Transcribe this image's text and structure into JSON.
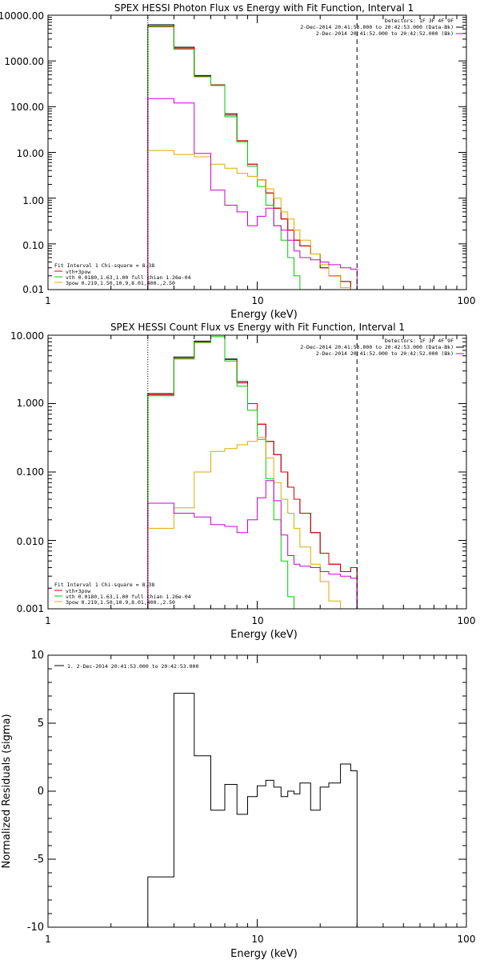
{
  "chart_data": [
    {
      "type": "line",
      "title": "SPEX HESSI Photon Flux vs Energy with Fit Function, Interval 1",
      "xlabel": "Energy (keV)",
      "ylabel": "",
      "xscale": "log",
      "yscale": "log",
      "xlim": [
        1,
        100
      ],
      "ylim": [
        0.01,
        10000
      ],
      "xticks": [
        "1",
        "10",
        "100"
      ],
      "yticks": [
        "0.01",
        "0.10",
        "1.00",
        "10.00",
        "100.00",
        "1000.00",
        "10000.00"
      ],
      "vlines": {
        "dotted": 3,
        "dashed": 30
      },
      "header": [
        {
          "text": "Detectors: 1F 3F 4F 9F",
          "color": null
        },
        {
          "text": "2-Dec-2014 20:41:53.000 to 20:42:53.000 (Data-Bk)",
          "color": "#000000"
        },
        {
          "text": "2-Dec-2014 20:41:52.000 to 20:42:52.000 (Bk)",
          "color": "#cc00cc"
        }
      ],
      "legend_title": "Fit Interval 1   Chi-square = 8.38",
      "legend_items": [
        {
          "text": "vth+3pow",
          "color": "#dd0000"
        },
        {
          "text": "vth 0.0180,1.63,1.00  full chian 1.26e-04",
          "color": "#00cc00"
        },
        {
          "text": "3pow 0.219,1.50,10.9,8.01,400.,2.50",
          "color": "#ddaa00"
        }
      ],
      "x_edges": [
        3,
        4,
        5,
        6,
        7,
        8,
        9,
        10,
        11,
        12,
        13,
        14,
        15,
        16,
        18,
        20,
        22,
        25,
        28,
        30
      ],
      "series": [
        {
          "color": "#000000",
          "values": [
            6200,
            2000,
            480,
            300,
            70,
            18,
            5.5,
            2.5,
            1.3,
            0.6,
            0.35,
            0.2,
            0.12,
            0.09,
            0.06,
            0.03,
            0.02,
            0.015,
            0.01
          ]
        },
        {
          "color": "#dd0000",
          "values": [
            5800,
            1900,
            460,
            300,
            65,
            18,
            5.5,
            2.5,
            1.3,
            0.6,
            0.35,
            0.2,
            0.12,
            0.09,
            0.06,
            0.03,
            0.02,
            0.015,
            0.01
          ]
        },
        {
          "color": "#00cc00",
          "values": [
            5500,
            1800,
            450,
            290,
            60,
            17,
            5,
            1.8,
            0.7,
            0.25,
            0.12,
            0.05,
            0.02,
            0.008
          ]
        },
        {
          "color": "#ddaa00",
          "values": [
            11,
            9,
            8,
            5.5,
            4.5,
            3.5,
            3,
            2.5,
            1.6,
            1.0,
            0.5,
            0.35,
            0.2,
            0.12,
            0.06,
            0.035,
            0.02,
            0.011
          ]
        },
        {
          "color": "#cc00cc",
          "values": [
            150,
            120,
            9.5,
            1.5,
            0.7,
            0.5,
            0.25,
            0.4,
            0.6,
            0.25,
            0.2,
            0.12,
            0.07,
            0.05,
            0.045,
            0.04,
            0.035,
            0.03,
            0.028
          ]
        }
      ]
    },
    {
      "type": "line",
      "title": "SPEX HESSI Count Flux vs Energy with Fit Function, Interval 1",
      "xlabel": "Energy (keV)",
      "ylabel": "",
      "xscale": "log",
      "yscale": "log",
      "xlim": [
        1,
        100
      ],
      "ylim": [
        0.001,
        10
      ],
      "xticks": [
        "1",
        "10",
        "100"
      ],
      "yticks": [
        "0.001",
        "0.010",
        "0.100",
        "1.000",
        "10.000"
      ],
      "vlines": {
        "dotted": 3,
        "dashed": 30
      },
      "header": [
        {
          "text": "Detectors: 1F 3F 4F 9F",
          "color": null
        },
        {
          "text": "2-Dec-2014 20:41:53.000 to 20:42:53.000 (Data-Bk)",
          "color": "#000000"
        },
        {
          "text": "2-Dec-2014 20:41:52.000 to 20:42:52.000 (Bk)",
          "color": "#cc00cc"
        }
      ],
      "legend_title": "Fit Interval 1   Chi-square = 8.38",
      "legend_items": [
        {
          "text": "vth+3pow",
          "color": "#dd0000"
        },
        {
          "text": "vth 0.0180,1.63,1.00  full chian 1.26e-04",
          "color": "#00cc00"
        },
        {
          "text": "3pow 0.219,1.50,10.9,8.01,400.,2.50",
          "color": "#ddaa00"
        }
      ],
      "x_edges": [
        3,
        4,
        5,
        6,
        7,
        8,
        9,
        10,
        11,
        12,
        13,
        14,
        15,
        16,
        18,
        20,
        22,
        25,
        28,
        30
      ],
      "series": [
        {
          "color": "#000000",
          "values": [
            1.4,
            4.8,
            8.2,
            10.5,
            4.5,
            2.1,
            1.0,
            0.5,
            0.28,
            0.18,
            0.1,
            0.06,
            0.04,
            0.025,
            0.013,
            0.0065,
            0.0045,
            0.0035,
            0.004
          ]
        },
        {
          "color": "#dd0000",
          "values": [
            1.35,
            4.6,
            8.0,
            10.0,
            4.4,
            2.0,
            1.0,
            0.5,
            0.28,
            0.18,
            0.1,
            0.06,
            0.04,
            0.025,
            0.013,
            0.0065,
            0.0045,
            0.0035,
            0.004
          ]
        },
        {
          "color": "#00cc00",
          "values": [
            1.3,
            4.5,
            7.8,
            9.5,
            4.2,
            1.8,
            0.8,
            0.3,
            0.08,
            0.02,
            0.005,
            0.0015
          ]
        },
        {
          "color": "#ddaa00",
          "values": [
            0.015,
            0.03,
            0.1,
            0.2,
            0.22,
            0.25,
            0.28,
            0.32,
            0.16,
            0.07,
            0.04,
            0.025,
            0.015,
            0.008,
            0.0045,
            0.0025,
            0.0013
          ]
        },
        {
          "color": "#cc00cc",
          "values": [
            0.035,
            0.025,
            0.022,
            0.017,
            0.016,
            0.013,
            0.02,
            0.042,
            0.075,
            0.038,
            0.012,
            0.006,
            0.0045,
            0.0042,
            0.004,
            0.0035,
            0.0032,
            0.003,
            0.0028
          ]
        }
      ]
    },
    {
      "type": "line",
      "title": "",
      "xlabel": "Energy (keV)",
      "ylabel": "Normalized Residuals (sigma)",
      "xscale": "log",
      "yscale": "linear",
      "xlim": [
        1,
        100
      ],
      "ylim": [
        -10,
        10
      ],
      "xticks": [
        "1",
        "10",
        "100"
      ],
      "yticks": [
        "-10",
        "-5",
        "0",
        "5",
        "10"
      ],
      "legend_items": [
        {
          "text": "1.  2-Dec-2014 20:41:53.000 to 20:42:53.000",
          "color": "#000000"
        }
      ],
      "x_edges": [
        3,
        4,
        5,
        6,
        7,
        8,
        9,
        10,
        11,
        12,
        13,
        14,
        15,
        16,
        18,
        20,
        22,
        25,
        28,
        30
      ],
      "series": [
        {
          "color": "#000000",
          "values": [
            -6.3,
            7.2,
            2.6,
            -1.4,
            0.5,
            -1.7,
            -0.4,
            0.4,
            0.8,
            0.3,
            -0.4,
            0.0,
            -0.2,
            0.6,
            -1.4,
            0.3,
            0.6,
            2.0,
            1.5
          ]
        }
      ]
    }
  ]
}
